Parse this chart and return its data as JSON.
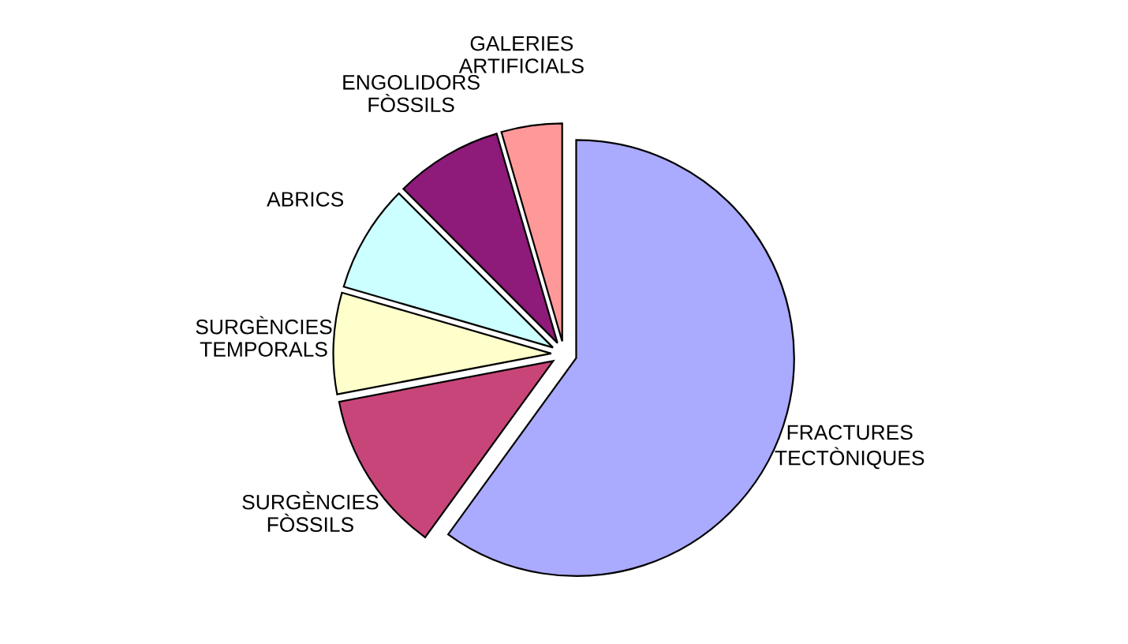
{
  "chart_data": {
    "type": "pie",
    "categories": [
      "FRACTURES\nTECTÒNIQUES",
      "SURGÈNCIES\nFÒSSILS",
      "SURGÈNCIES\nTEMPORALS",
      "ABRICS",
      "ENGOLIDORS\nFÒSSILS",
      "GALERIES\nARTIFICIALS"
    ],
    "values": [
      60,
      12,
      7.5,
      8,
      8,
      4.5
    ],
    "colors": [
      "#aaaaff",
      "#c8457a",
      "#ffffcc",
      "#ccffff",
      "#8e1a7a",
      "#ff9999"
    ]
  }
}
